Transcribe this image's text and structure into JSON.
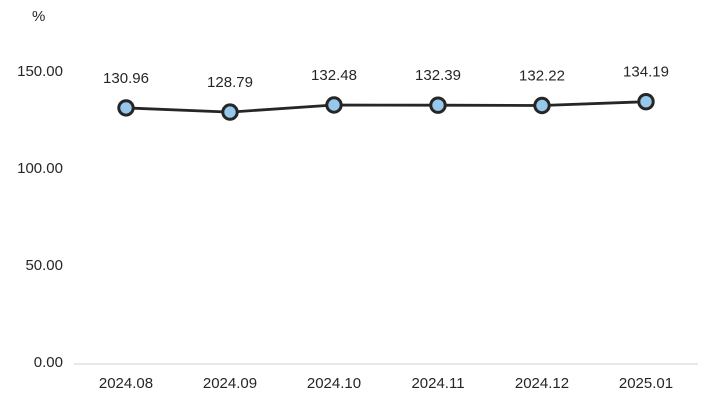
{
  "chart_data": {
    "type": "line",
    "title": "",
    "unit": "%",
    "categories": [
      "2024.08",
      "2024.09",
      "2024.10",
      "2024.11",
      "2024.12",
      "2025.01"
    ],
    "values": [
      130.96,
      128.79,
      132.48,
      132.39,
      132.22,
      134.19
    ],
    "data_labels": [
      "130.96",
      "128.79",
      "132.48",
      "132.39",
      "132.22",
      "134.19"
    ],
    "xlabel": "",
    "ylabel": "%",
    "ylim": [
      0,
      150
    ],
    "ytick_values": [
      150,
      100,
      50,
      0
    ],
    "ytick_labels": [
      "150.00",
      "100.00",
      "50.00",
      "0.00"
    ],
    "grid": false,
    "legend": "none",
    "colors": {
      "line": "#262626",
      "marker_fill": "#96C8EB",
      "marker_stroke": "#262626",
      "axis_line": "#D9D9D9",
      "text": "#262626",
      "background": "#FFFFFF"
    }
  }
}
